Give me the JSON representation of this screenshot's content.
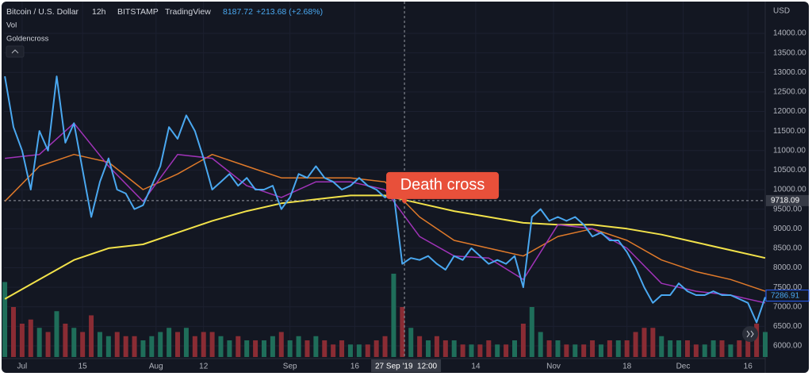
{
  "header": {
    "symbol": "Bitcoin / U.S. Dollar",
    "interval": "12h",
    "exchange": "BITSTAMP",
    "brand": "TradingView",
    "last": "8187.72",
    "change": "+213.68 (+2.68%)",
    "studies": [
      "Vol",
      "Goldencross"
    ]
  },
  "chart_data": {
    "type": "line",
    "y_axis_label": "USD",
    "xlim": [
      -4.2,
      172
    ],
    "ylim": [
      5716,
      14650
    ],
    "xticks": [
      {
        "value": 0,
        "label": "Jul"
      },
      {
        "value": 14,
        "label": "15"
      },
      {
        "value": 31,
        "label": "Aug"
      },
      {
        "value": 42,
        "label": "12"
      },
      {
        "value": 62,
        "label": "Sep"
      },
      {
        "value": 77,
        "label": "16"
      },
      {
        "value": 105,
        "label": "14"
      },
      {
        "value": 123,
        "label": "Nov"
      },
      {
        "value": 140,
        "label": "18"
      },
      {
        "value": 153,
        "label": "Dec"
      },
      {
        "value": 168,
        "label": "16"
      }
    ],
    "yticks": [
      {
        "value": 6000,
        "label": "6000.00"
      },
      {
        "value": 6500,
        "label": "6500.00"
      },
      {
        "value": 7000,
        "label": "7000.00"
      },
      {
        "value": 7500,
        "label": "7500.00"
      },
      {
        "value": 8000,
        "label": "8000.00"
      },
      {
        "value": 8500,
        "label": "8500.00"
      },
      {
        "value": 9000,
        "label": "9000.00"
      },
      {
        "value": 9500,
        "label": "9500.00"
      },
      {
        "value": 10000,
        "label": "10000.00"
      },
      {
        "value": 10500,
        "label": "10500.00"
      },
      {
        "value": 11000,
        "label": "11000.00"
      },
      {
        "value": 11500,
        "label": "11500.00"
      },
      {
        "value": 12000,
        "label": "12000.00"
      },
      {
        "value": 12500,
        "label": "12500.00"
      },
      {
        "value": 13000,
        "label": "13000.00"
      },
      {
        "value": 13500,
        "label": "13500.00"
      },
      {
        "value": 14000,
        "label": "14000.00"
      }
    ],
    "grid": true,
    "series": [
      {
        "color": "#f2e24a",
        "width": 2,
        "x": [
          -4,
          4,
          12,
          20,
          28,
          36,
          44,
          52,
          60,
          68,
          76,
          84,
          92,
          100,
          108,
          116,
          124,
          132,
          140,
          148,
          156,
          164,
          172
        ],
        "values": [
          7200,
          7700,
          8200,
          8500,
          8600,
          8900,
          9200,
          9450,
          9650,
          9750,
          9850,
          9850,
          9650,
          9450,
          9300,
          9150,
          9100,
          9100,
          9000,
          8850,
          8650,
          8450,
          8250
        ]
      },
      {
        "color": "#e07a2a",
        "width": 1.5,
        "x": [
          -4,
          4,
          12,
          20,
          28,
          36,
          44,
          52,
          60,
          68,
          76,
          84,
          92,
          100,
          108,
          116,
          124,
          132,
          140,
          148,
          156,
          164,
          172
        ],
        "values": [
          9700,
          10600,
          10900,
          10700,
          10000,
          10400,
          10900,
          10600,
          10300,
          10300,
          10300,
          10200,
          9300,
          8700,
          8500,
          8300,
          8800,
          9000,
          8700,
          8200,
          7900,
          7700,
          7400
        ]
      },
      {
        "color": "#a033b8",
        "width": 1.5,
        "x": [
          -4,
          4,
          12,
          20,
          28,
          36,
          44,
          52,
          60,
          68,
          76,
          84,
          92,
          100,
          108,
          116,
          124,
          132,
          140,
          148,
          156,
          164,
          172
        ],
        "values": [
          10800,
          10900,
          11700,
          10600,
          9700,
          10900,
          10800,
          10100,
          9800,
          10200,
          10200,
          10000,
          8800,
          8300,
          8250,
          7700,
          9100,
          9000,
          8500,
          7600,
          7400,
          7300,
          7100
        ]
      },
      {
        "color": "#4aa8f0",
        "width": 2,
        "x": [
          -4,
          -2,
          0,
          2,
          4,
          6,
          8,
          10,
          12,
          14,
          16,
          18,
          20,
          22,
          24,
          26,
          28,
          30,
          32,
          34,
          36,
          38,
          40,
          42,
          44,
          46,
          48,
          50,
          52,
          54,
          56,
          58,
          60,
          62,
          64,
          66,
          68,
          70,
          72,
          74,
          76,
          78,
          80,
          82,
          84,
          86,
          88,
          90,
          92,
          94,
          96,
          98,
          100,
          102,
          104,
          106,
          108,
          110,
          112,
          114,
          116,
          118,
          120,
          122,
          124,
          126,
          128,
          130,
          132,
          134,
          136,
          138,
          140,
          142,
          144,
          146,
          148,
          150,
          152,
          154,
          156,
          158,
          160,
          162,
          164,
          166,
          168,
          170,
          172
        ],
        "values": [
          12900,
          11600,
          11000,
          10000,
          11500,
          11000,
          12900,
          11200,
          11700,
          10500,
          9300,
          10200,
          10800,
          10000,
          9900,
          9500,
          9600,
          10100,
          10600,
          11600,
          11300,
          11900,
          11500,
          10800,
          10000,
          10200,
          10400,
          10100,
          10300,
          10000,
          10000,
          10100,
          9500,
          9800,
          10400,
          10300,
          10600,
          10300,
          10200,
          10000,
          10100,
          10300,
          10100,
          10000,
          9800,
          9900,
          8100,
          8250,
          8200,
          8300,
          8100,
          7950,
          8300,
          8200,
          8500,
          8300,
          8100,
          8200,
          8100,
          8300,
          7500,
          9300,
          9500,
          9200,
          9300,
          9200,
          9300,
          9100,
          8800,
          8900,
          8700,
          8700,
          8400,
          8000,
          7500,
          7100,
          7300,
          7300,
          7600,
          7400,
          7300,
          7300,
          7400,
          7300,
          7300,
          7200,
          7100,
          6600,
          7250
        ]
      }
    ],
    "volume": {
      "up_color": "#1f6e5a",
      "down_color": "#8a2c34",
      "ylim": [
        0,
        100
      ],
      "values": [
        90,
        60,
        40,
        45,
        35,
        30,
        55,
        40,
        35,
        30,
        50,
        30,
        25,
        30,
        25,
        25,
        20,
        25,
        30,
        35,
        30,
        35,
        25,
        30,
        30,
        25,
        20,
        25,
        20,
        20,
        20,
        25,
        30,
        20,
        25,
        20,
        25,
        20,
        15,
        20,
        15,
        15,
        15,
        20,
        25,
        100,
        60,
        35,
        25,
        20,
        25,
        20,
        20,
        15,
        15,
        15,
        20,
        15,
        15,
        20,
        40,
        60,
        30,
        20,
        20,
        15,
        15,
        15,
        20,
        15,
        20,
        20,
        20,
        30,
        35,
        35,
        25,
        20,
        20,
        20,
        15,
        15,
        20,
        20,
        15,
        20,
        25,
        40,
        30
      ]
    },
    "crosshair": {
      "x": 88.5,
      "x_label": "27 Sep '19  12:00",
      "y": 9718.09
    },
    "current_price": 7286.91,
    "annotation": "Death cross"
  }
}
